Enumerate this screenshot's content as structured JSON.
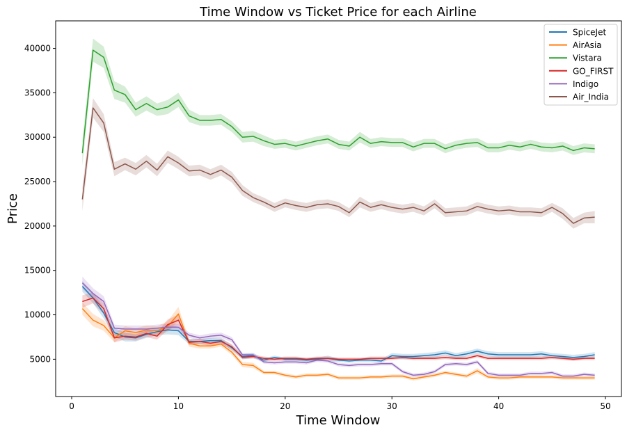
{
  "chart_data": {
    "type": "line",
    "title": "Time Window vs Ticket Price for each Airline",
    "xlabel": "Time Window",
    "ylabel": "Price",
    "xlim": [
      -1.5,
      51.5
    ],
    "ylim": [
      800,
      43100
    ],
    "xticks": [
      0,
      10,
      20,
      30,
      40,
      50
    ],
    "yticks": [
      5000,
      10000,
      15000,
      20000,
      25000,
      30000,
      35000,
      40000
    ],
    "legend_position": "top-right",
    "grid": false,
    "x": [
      1,
      2,
      3,
      4,
      5,
      6,
      7,
      8,
      9,
      10,
      11,
      12,
      13,
      14,
      15,
      16,
      17,
      18,
      19,
      20,
      21,
      22,
      23,
      24,
      25,
      26,
      27,
      28,
      29,
      30,
      31,
      32,
      33,
      34,
      35,
      36,
      37,
      38,
      39,
      40,
      41,
      42,
      43,
      44,
      45,
      46,
      47,
      48,
      49
    ],
    "series": [
      {
        "name": "SpiceJet",
        "color": "#1f77b4",
        "values": [
          13200,
          11900,
          10200,
          8000,
          7500,
          7400,
          7800,
          8100,
          8300,
          8200,
          7000,
          7000,
          7100,
          7100,
          6300,
          5300,
          5400,
          4900,
          5200,
          5000,
          5000,
          4900,
          5000,
          5100,
          4900,
          4800,
          4900,
          4900,
          4800,
          5400,
          5300,
          5300,
          5400,
          5500,
          5700,
          5400,
          5600,
          5900,
          5600,
          5500,
          5500,
          5500,
          5500,
          5600,
          5400,
          5300,
          5200,
          5300,
          5500
        ],
        "band": [
          600,
          600,
          600,
          500,
          500,
          400,
          400,
          400,
          500,
          500,
          300,
          300,
          300,
          300,
          300,
          300,
          300,
          200,
          200,
          200,
          200,
          200,
          200,
          300,
          200,
          200,
          200,
          200,
          200,
          300,
          300,
          300,
          300,
          300,
          300,
          300,
          300,
          300,
          300,
          300,
          300,
          300,
          300,
          300,
          300,
          300,
          300,
          300,
          300
        ]
      },
      {
        "name": "AirAsia",
        "color": "#ff7f0e",
        "values": [
          10700,
          9400,
          8800,
          7400,
          8200,
          8000,
          8300,
          8200,
          8700,
          10100,
          6800,
          6500,
          6500,
          6700,
          5800,
          4400,
          4300,
          3500,
          3500,
          3200,
          3000,
          3200,
          3200,
          3300,
          2900,
          2900,
          2900,
          3000,
          3000,
          3100,
          3100,
          2800,
          3000,
          3200,
          3500,
          3300,
          3100,
          3700,
          3000,
          2900,
          2900,
          3000,
          3000,
          3000,
          3000,
          2900,
          2900,
          2900,
          2900
        ],
        "band": [
          700,
          700,
          600,
          500,
          500,
          500,
          500,
          500,
          600,
          800,
          400,
          300,
          300,
          300,
          300,
          300,
          300,
          200,
          200,
          200,
          200,
          200,
          200,
          200,
          200,
          200,
          200,
          200,
          200,
          200,
          200,
          200,
          200,
          200,
          200,
          200,
          200,
          300,
          200,
          200,
          200,
          200,
          200,
          200,
          200,
          200,
          200,
          200,
          200
        ]
      },
      {
        "name": "Vistara",
        "color": "#2ca02c",
        "values": [
          28200,
          39800,
          39000,
          35300,
          34800,
          33100,
          33800,
          33100,
          33400,
          34200,
          32400,
          31900,
          31900,
          32000,
          31200,
          30000,
          30100,
          29600,
          29200,
          29300,
          29000,
          29300,
          29600,
          29800,
          29200,
          29000,
          30000,
          29300,
          29500,
          29400,
          29400,
          28900,
          29300,
          29300,
          28700,
          29100,
          29300,
          29400,
          28800,
          28800,
          29100,
          28900,
          29200,
          28900,
          28800,
          29000,
          28500,
          28800,
          28700
        ],
        "band": [
          1400,
          1300,
          1200,
          1000,
          900,
          800,
          800,
          700,
          800,
          800,
          700,
          600,
          600,
          600,
          600,
          600,
          600,
          600,
          500,
          500,
          500,
          500,
          500,
          500,
          500,
          500,
          600,
          500,
          500,
          500,
          500,
          500,
          500,
          500,
          500,
          500,
          500,
          500,
          500,
          500,
          500,
          500,
          500,
          500,
          500,
          500,
          500,
          500,
          500
        ]
      },
      {
        "name": "GO_FIRST",
        "color": "#d62728",
        "values": [
          11500,
          11900,
          10700,
          7400,
          7600,
          7500,
          7900,
          7600,
          8900,
          9400,
          6900,
          7000,
          6800,
          7000,
          6400,
          5200,
          5300,
          5100,
          5000,
          5100,
          5100,
          5000,
          5100,
          5100,
          5000,
          5000,
          5000,
          5100,
          5100,
          5100,
          5200,
          5100,
          5100,
          5100,
          5200,
          5100,
          5100,
          5400,
          5100,
          5100,
          5100,
          5100,
          5100,
          5100,
          5200,
          5100,
          5000,
          5100,
          5100
        ],
        "band": [
          700,
          600,
          600,
          500,
          400,
          400,
          400,
          400,
          600,
          600,
          300,
          300,
          300,
          300,
          300,
          200,
          200,
          200,
          200,
          200,
          200,
          200,
          200,
          200,
          200,
          200,
          200,
          200,
          200,
          200,
          200,
          200,
          200,
          200,
          200,
          200,
          200,
          200,
          200,
          200,
          200,
          200,
          200,
          200,
          200,
          200,
          200,
          200,
          200
        ]
      },
      {
        "name": "Indigo",
        "color": "#9467bd",
        "values": [
          13600,
          12400,
          11500,
          8500,
          8400,
          8400,
          8400,
          8500,
          8600,
          8600,
          7700,
          7400,
          7600,
          7700,
          7200,
          5500,
          5500,
          4700,
          4600,
          4700,
          4700,
          4600,
          4900,
          4800,
          4400,
          4300,
          4400,
          4400,
          4500,
          4500,
          3600,
          3200,
          3300,
          3600,
          4400,
          4500,
          4400,
          4700,
          3400,
          3200,
          3200,
          3200,
          3400,
          3400,
          3500,
          3100,
          3100,
          3300,
          3200
        ],
        "band": [
          700,
          600,
          600,
          400,
          400,
          400,
          400,
          400,
          400,
          400,
          300,
          300,
          300,
          300,
          300,
          200,
          200,
          200,
          200,
          200,
          200,
          200,
          200,
          200,
          200,
          200,
          200,
          200,
          200,
          200,
          200,
          200,
          200,
          200,
          200,
          200,
          200,
          200,
          200,
          200,
          200,
          200,
          200,
          200,
          200,
          200,
          200,
          200,
          200
        ]
      },
      {
        "name": "Air_India",
        "color": "#8c564b",
        "values": [
          23000,
          33300,
          31600,
          26400,
          27000,
          26400,
          27300,
          26300,
          27800,
          27100,
          26200,
          26300,
          25800,
          26300,
          25500,
          24000,
          23200,
          22700,
          22100,
          22600,
          22300,
          22100,
          22400,
          22500,
          22200,
          21500,
          22700,
          22100,
          22400,
          22100,
          21900,
          22100,
          21700,
          22500,
          21500,
          21600,
          21700,
          22200,
          21900,
          21700,
          21800,
          21600,
          21600,
          21500,
          22100,
          21400,
          20300,
          20900,
          21000
        ],
        "band": [
          1300,
          1100,
          1000,
          800,
          700,
          700,
          700,
          700,
          700,
          700,
          600,
          600,
          600,
          600,
          600,
          600,
          500,
          500,
          500,
          500,
          500,
          500,
          500,
          500,
          500,
          500,
          600,
          500,
          500,
          500,
          500,
          500,
          500,
          500,
          500,
          500,
          500,
          500,
          500,
          500,
          500,
          500,
          500,
          500,
          500,
          600,
          600,
          600,
          700
        ]
      }
    ]
  }
}
